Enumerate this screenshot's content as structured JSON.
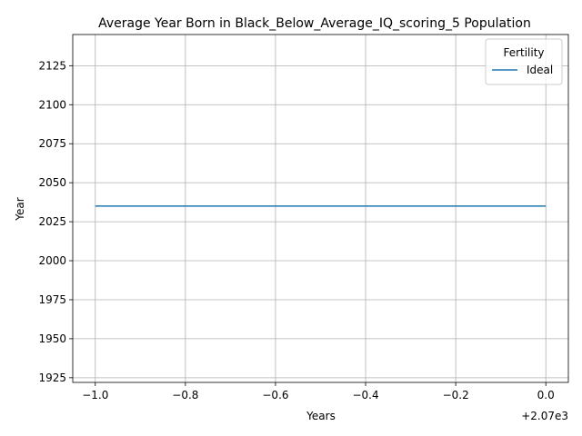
{
  "chart_data": {
    "type": "line",
    "title": "Average Year Born in Black_Below_Average_IQ_scoring_5 Population",
    "xlabel": "Years",
    "ylabel": "Year",
    "x_offset_label": "+2.07e3",
    "x_tick_labels": [
      "−1.0",
      "−0.8",
      "−0.6",
      "−0.4",
      "−0.2",
      "0.0"
    ],
    "x_ticks": [
      2069.0,
      2069.2,
      2069.4,
      2069.6,
      2069.8,
      2070.0
    ],
    "y_ticks": [
      1925,
      1950,
      1975,
      2000,
      2025,
      2050,
      2075,
      2100,
      2125
    ],
    "xlim": [
      2068.95,
      2070.05
    ],
    "ylim": [
      1922,
      2145
    ],
    "grid": true,
    "legend": {
      "title": "Fertility",
      "placement": "top-right"
    },
    "series": [
      {
        "name": "Ideal",
        "color": "#1f77b4",
        "x": [
          2069,
          2070
        ],
        "y": [
          2035,
          2035
        ]
      }
    ]
  }
}
